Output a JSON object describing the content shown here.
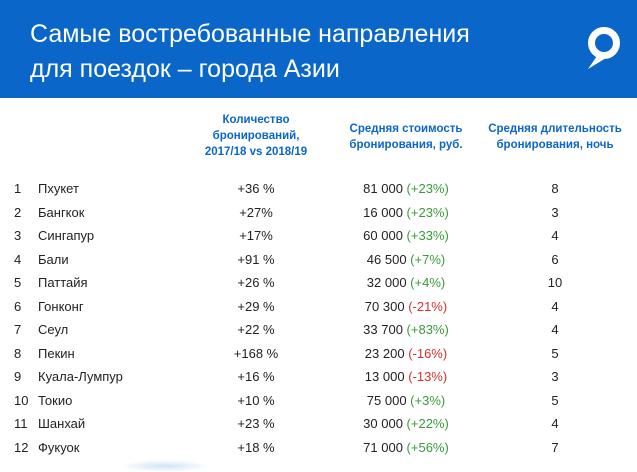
{
  "header": {
    "title_line1": "Самые востребованные направления",
    "title_line2": "для поездок – города Азии"
  },
  "colors": {
    "brand": "#0a67c9",
    "positive": "#3a9a3a",
    "negative": "#d0312d"
  },
  "icons": {
    "logo": "location-pin-logo-icon"
  },
  "table": {
    "headers": {
      "count": [
        "Количество",
        "бронирований,",
        "2017/18 vs 2018/19"
      ],
      "cost": [
        "Средняя стоимость",
        "бронирования, руб."
      ],
      "duration": [
        "Средняя длительность",
        "бронирования, ночь"
      ]
    },
    "rows": [
      {
        "n": "1",
        "city": "Пхукет",
        "count": "+36 %",
        "cost": "81 000",
        "change": "(+23%)",
        "dir": "pos",
        "nights": "8"
      },
      {
        "n": "2",
        "city": "Бангкок",
        "count": "+27%",
        "cost": "16 000",
        "change": "(+23%)",
        "dir": "pos",
        "nights": "3"
      },
      {
        "n": "3",
        "city": "Сингапур",
        "count": "+17%",
        "cost": "60 000",
        "change": "(+33%)",
        "dir": "pos",
        "nights": "4"
      },
      {
        "n": "4",
        "city": "Бали",
        "count": "+91 %",
        "cost": "46 500",
        "change": "(+7%)",
        "dir": "pos",
        "nights": "6"
      },
      {
        "n": "5",
        "city": "Паттайя",
        "count": "+26 %",
        "cost": "32 000",
        "change": "(+4%)",
        "dir": "pos",
        "nights": "10"
      },
      {
        "n": "6",
        "city": "Гонконг",
        "count": "+29 %",
        "cost": "70 300",
        "change": "(-21%)",
        "dir": "neg",
        "nights": "4"
      },
      {
        "n": "7",
        "city": "Сеул",
        "count": "+22 %",
        "cost": "33 700",
        "change": "(+83%)",
        "dir": "pos",
        "nights": "4"
      },
      {
        "n": "8",
        "city": "Пекин",
        "count": "+168 %",
        "cost": "23 200",
        "change": "(-16%)",
        "dir": "neg",
        "nights": "5"
      },
      {
        "n": "9",
        "city": "Куала-Лумпур",
        "count": "+16 %",
        "cost": "13 000",
        "change": "(-13%)",
        "dir": "neg",
        "nights": "3"
      },
      {
        "n": "10",
        "city": "Токио",
        "count": "+10 %",
        "cost": "75 000",
        "change": "(+3%)",
        "dir": "pos",
        "nights": "5"
      },
      {
        "n": "11",
        "city": "Шанхай",
        "count": "+23 %",
        "cost": "30 000",
        "change": "(+22%)",
        "dir": "pos",
        "nights": "4"
      },
      {
        "n": "12",
        "city": "Фукуок",
        "count": "+18 %",
        "cost": "71 000",
        "change": "(+56%)",
        "dir": "pos",
        "nights": "7"
      }
    ]
  }
}
